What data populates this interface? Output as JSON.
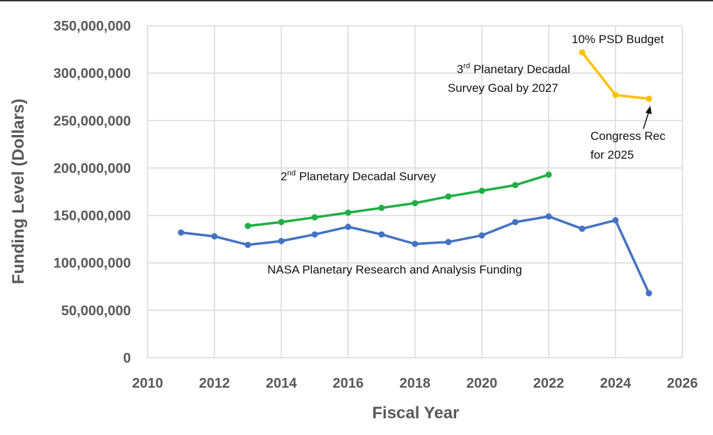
{
  "chart_data": {
    "type": "line",
    "xlabel": "Fiscal Year",
    "ylabel": "Funding Level (Dollars)",
    "xlim": [
      2010,
      2026
    ],
    "ylim": [
      0,
      350000000
    ],
    "x_ticks": [
      "2010",
      "2012",
      "2014",
      "2016",
      "2018",
      "2020",
      "2022",
      "2024",
      "2026"
    ],
    "y_ticks": [
      "0",
      "50,000,000",
      "100,000,000",
      "150,000,000",
      "200,000,000",
      "250,000,000",
      "300,000,000",
      "350,000,000"
    ],
    "grid": true,
    "legend": "none",
    "series": [
      {
        "name": "NASA Planetary Research and Analysis Funding",
        "color": "#4472C4",
        "x": [
          2011,
          2012,
          2013,
          2014,
          2015,
          2016,
          2017,
          2018,
          2019,
          2020,
          2021,
          2022,
          2023,
          2024,
          2025
        ],
        "values": [
          132000000,
          128000000,
          119000000,
          123000000,
          130000000,
          138000000,
          130000000,
          120000000,
          122000000,
          129000000,
          143000000,
          149000000,
          136000000,
          145000000,
          68000000
        ]
      },
      {
        "name": "2nd Planetary Decadal Survey",
        "color": "#1FAF45",
        "x": [
          2013,
          2014,
          2015,
          2016,
          2017,
          2018,
          2019,
          2020,
          2021,
          2022
        ],
        "values": [
          139000000,
          143000000,
          148000000,
          153000000,
          158000000,
          163000000,
          170000000,
          176000000,
          182000000,
          193000000
        ]
      },
      {
        "name": "3rd Planetary Decadal Survey Goal by 2027",
        "color": "#FFC000",
        "x": [
          2023,
          2024,
          2025
        ],
        "values": [
          322000000,
          277000000,
          273000000
        ]
      }
    ],
    "annotations": {
      "blue_label": "NASA Planetary Research and Analysis Funding",
      "green_label_prefix": "2",
      "green_label_sup": "nd",
      "green_label_rest": " Planetary Decadal Survey",
      "yellow_label_line1_prefix": "3",
      "yellow_label_line1_sup": "rd",
      "yellow_label_line1_rest": " Planetary Decadal",
      "yellow_label_line2": "Survey Goal by 2027",
      "top_label": "10% PSD Budget",
      "congress_line1": "Congress Rec",
      "congress_line2": "for 2025"
    }
  }
}
